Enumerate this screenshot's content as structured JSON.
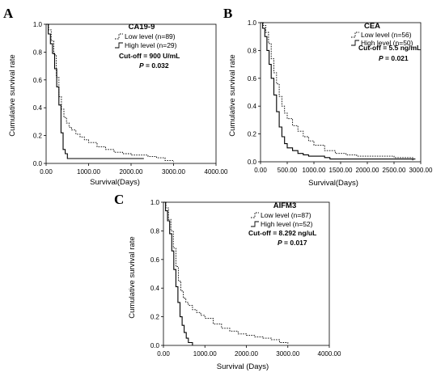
{
  "chart_data": [
    {
      "type": "line",
      "panel": "A",
      "title": "CA19-9",
      "xlabel": "Survival(Days)",
      "ylabel": "Cumulative survival rate",
      "xlim": [
        0,
        4000
      ],
      "ylim": [
        0,
        1
      ],
      "xticks": [
        "0.00",
        "1000.00",
        "2000.00",
        "3000.00",
        "4000.00"
      ],
      "yticks": [
        "0.0",
        "0.2",
        "0.4",
        "0.6",
        "0.8",
        "1.0"
      ],
      "cutoff": "Cut-off = 900 U/mL",
      "p_label": "P",
      "p_value": "= 0.032",
      "series": [
        {
          "name": "Low level (n=89)",
          "style": "dotted",
          "x": [
            0,
            60,
            120,
            180,
            240,
            300,
            360,
            420,
            480,
            540,
            600,
            700,
            800,
            900,
            1000,
            1200,
            1400,
            1600,
            1800,
            2000,
            2200,
            2400,
            2600,
            2800,
            3000
          ],
          "y": [
            1.0,
            0.96,
            0.88,
            0.78,
            0.62,
            0.48,
            0.39,
            0.33,
            0.29,
            0.26,
            0.24,
            0.21,
            0.19,
            0.17,
            0.15,
            0.12,
            0.1,
            0.08,
            0.07,
            0.06,
            0.06,
            0.05,
            0.04,
            0.02,
            0.01
          ]
        },
        {
          "name": "High level (n=29)",
          "style": "solid",
          "x": [
            0,
            50,
            100,
            150,
            200,
            250,
            300,
            350,
            400,
            450,
            500,
            2300
          ],
          "y": [
            1.0,
            0.93,
            0.86,
            0.79,
            0.68,
            0.55,
            0.42,
            0.22,
            0.1,
            0.07,
            0.035,
            0.035
          ]
        }
      ]
    },
    {
      "type": "line",
      "panel": "B",
      "title": "CEA",
      "xlabel": "Survival(Days)",
      "ylabel": "Cumulative survival rate",
      "xlim": [
        0,
        3000
      ],
      "ylim": [
        0,
        1
      ],
      "xticks": [
        "0.00",
        "500.00",
        "1000.00",
        "1500.00",
        "2000.00",
        "2500.00",
        "3000.00"
      ],
      "yticks": [
        "0.0",
        "0.2",
        "0.4",
        "0.6",
        "0.8",
        "1.0"
      ],
      "cutoff": "Cut-off = 5.5 ng/mL",
      "p_label": "P",
      "p_value": "= 0.021",
      "series": [
        {
          "name": "Low level (n=56)",
          "style": "dotted",
          "x": [
            0,
            50,
            100,
            150,
            200,
            250,
            300,
            350,
            400,
            450,
            500,
            600,
            700,
            800,
            900,
            1000,
            1200,
            1400,
            1600,
            1800,
            2000,
            2200,
            2500,
            2800,
            2850
          ],
          "y": [
            1.0,
            0.98,
            0.93,
            0.85,
            0.74,
            0.64,
            0.56,
            0.47,
            0.4,
            0.35,
            0.31,
            0.26,
            0.22,
            0.18,
            0.15,
            0.12,
            0.08,
            0.06,
            0.05,
            0.04,
            0.04,
            0.04,
            0.03,
            0.03,
            0.01
          ]
        },
        {
          "name": "High level (n=50)",
          "style": "solid",
          "x": [
            0,
            40,
            80,
            120,
            160,
            200,
            250,
            300,
            350,
            400,
            450,
            500,
            600,
            700,
            800,
            900,
            1000,
            1200,
            1300,
            2900
          ],
          "y": [
            1.0,
            0.96,
            0.9,
            0.8,
            0.7,
            0.6,
            0.48,
            0.36,
            0.25,
            0.18,
            0.13,
            0.1,
            0.08,
            0.06,
            0.05,
            0.04,
            0.04,
            0.03,
            0.02,
            0.02
          ]
        }
      ]
    },
    {
      "type": "line",
      "panel": "C",
      "title": "AIFM3",
      "xlabel": "Survival (Days)",
      "ylabel": "Cumulative survival rate",
      "xlim": [
        0,
        4000
      ],
      "ylim": [
        0,
        1
      ],
      "xticks": [
        "0.00",
        "1000.00",
        "2000.00",
        "3000.00",
        "4000.00"
      ],
      "yticks": [
        "0.0",
        "0.2",
        "0.4",
        "0.6",
        "0.8",
        "1.0"
      ],
      "cutoff": "Cut-off = 8.292 ng/uL",
      "p_label": "P",
      "p_value": "= 0.017",
      "series": [
        {
          "name": "Low level (n=87)",
          "style": "dotted",
          "x": [
            0,
            60,
            120,
            180,
            240,
            300,
            360,
            420,
            480,
            540,
            600,
            700,
            800,
            900,
            1000,
            1200,
            1400,
            1600,
            1800,
            2000,
            2200,
            2400,
            2600,
            2800,
            3000
          ],
          "y": [
            1.0,
            0.96,
            0.88,
            0.8,
            0.68,
            0.55,
            0.45,
            0.38,
            0.33,
            0.3,
            0.28,
            0.25,
            0.23,
            0.21,
            0.19,
            0.15,
            0.12,
            0.1,
            0.08,
            0.07,
            0.06,
            0.05,
            0.04,
            0.02,
            0.01
          ]
        },
        {
          "name": "High level (n=52)",
          "style": "solid",
          "x": [
            0,
            50,
            100,
            150,
            200,
            250,
            300,
            350,
            400,
            450,
            500,
            550,
            600,
            700
          ],
          "y": [
            1.0,
            0.94,
            0.87,
            0.78,
            0.66,
            0.53,
            0.41,
            0.3,
            0.2,
            0.14,
            0.09,
            0.05,
            0.02,
            0.0
          ]
        }
      ]
    }
  ]
}
